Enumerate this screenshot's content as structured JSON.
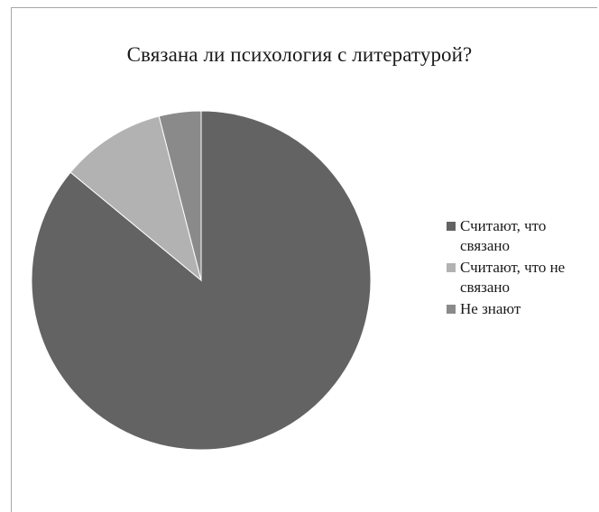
{
  "chart_data": {
    "type": "pie",
    "title": "Связана ли психология с литературой?",
    "categories": [
      "Считают, что связано",
      "Считают, что не связано",
      "Не знают"
    ],
    "values": [
      86,
      10,
      4
    ],
    "colors": [
      "#636363",
      "#b2b2b2",
      "#8a8a8a"
    ],
    "legend_position": "right"
  }
}
